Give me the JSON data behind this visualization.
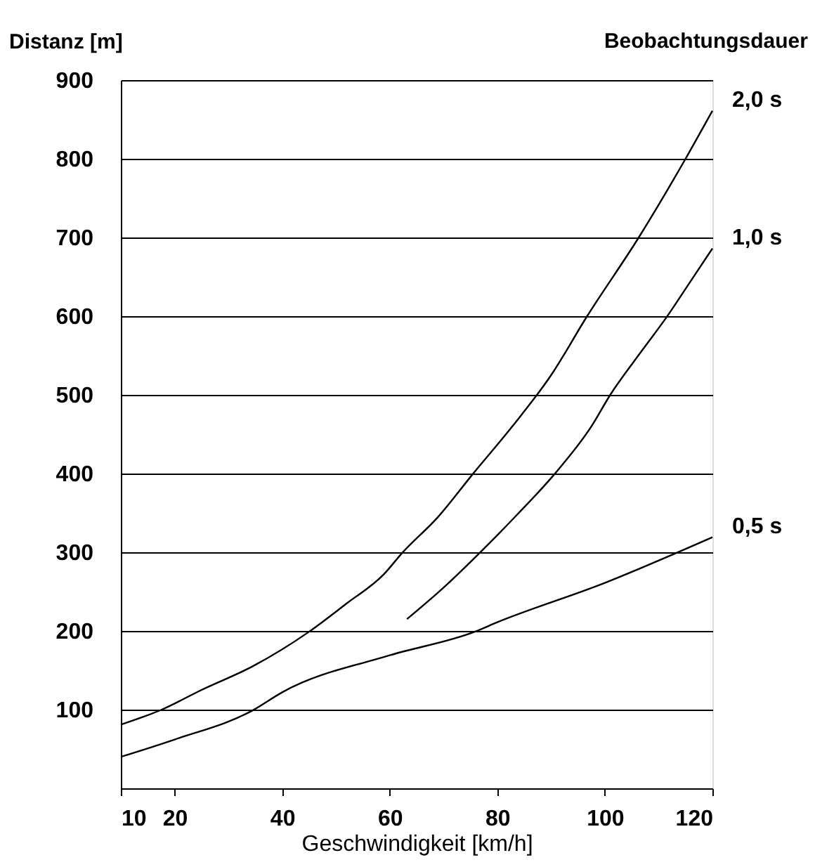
{
  "chart_data": {
    "type": "line",
    "xlabel": "Geschwindigkeit [km/h]",
    "ylabel": "Distanz [m]",
    "legend_title": "Beobachtungsdauer",
    "xlim": [
      10,
      120
    ],
    "xticks": [
      10,
      20,
      40,
      60,
      80,
      100,
      120
    ],
    "ylim": [
      0,
      900
    ],
    "yticks": [
      100,
      200,
      300,
      400,
      500,
      600,
      700,
      800,
      900
    ],
    "grid": "y",
    "legend": false,
    "marker": "none",
    "line_style": "solid",
    "series": [
      {
        "name": "2,0 s",
        "color": "#000000",
        "x": [
          10,
          17.6,
          25,
          34.5,
          45,
          52,
          58.9,
          62.3,
          69,
          75.4,
          82.8,
          90,
          96.7,
          106.3,
          115,
          120
        ],
        "values": [
          81,
          100,
          125,
          155,
          199,
          235,
          272,
          299,
          345,
          399,
          460,
          525,
          600,
          700,
          800,
          861
        ]
      },
      {
        "name": "1,0 s",
        "color": "#000000",
        "x": [
          63.2,
          70,
          76.7,
          84,
          90.6,
          97.6,
          101,
          106,
          111.5,
          116,
          120
        ],
        "values": [
          215,
          255,
          299,
          350,
          399,
          461,
          500,
          548,
          599,
          645,
          686
        ]
      },
      {
        "name": "0,5 s",
        "color": "#000000",
        "x": [
          10,
          20,
          34.5,
          40,
          60,
          75.8,
          80,
          100,
          120
        ],
        "values": [
          40,
          62,
          99,
          122,
          169,
          199,
          211,
          261,
          319
        ]
      }
    ]
  }
}
